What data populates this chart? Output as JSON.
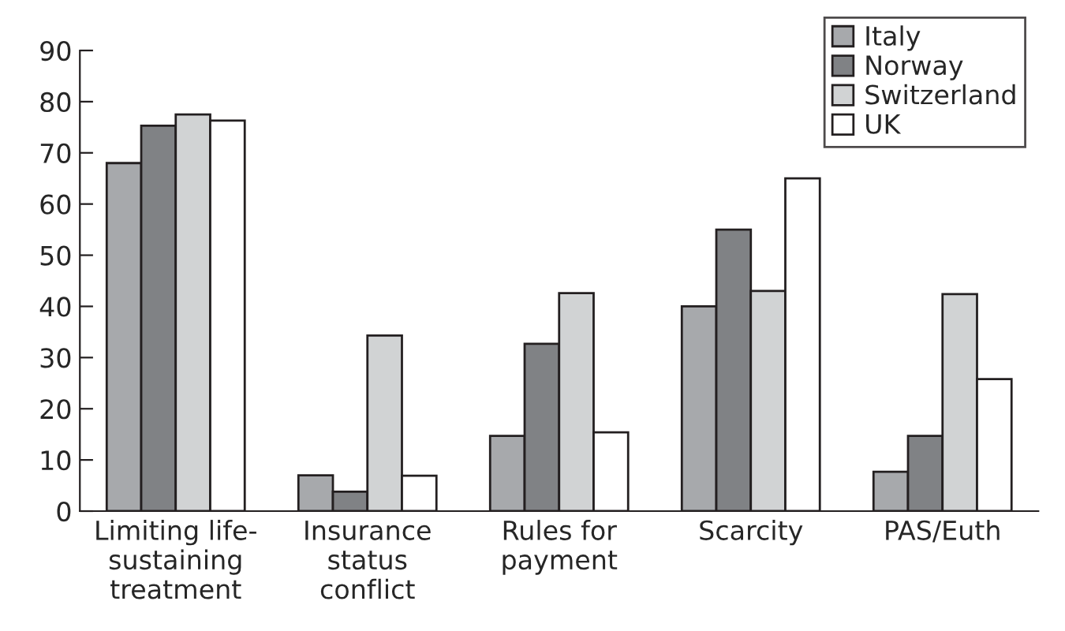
{
  "chart_data": {
    "type": "bar",
    "categories": [
      "Limiting life-\nsustaining\ntreatment",
      "Insurance\nstatus\nconflict",
      "Rules for\npayment",
      "Scarcity",
      "PAS/Euth"
    ],
    "series": [
      {
        "name": "Italy",
        "color": "#a7a9ac",
        "values": [
          68,
          7,
          14.7,
          40,
          7.7
        ]
      },
      {
        "name": "Norway",
        "color": "#808285",
        "values": [
          75.3,
          3.8,
          32.7,
          55,
          14.7
        ]
      },
      {
        "name": "Switzerland",
        "color": "#d1d3d4",
        "values": [
          77.5,
          34.3,
          42.6,
          43,
          42.4
        ]
      },
      {
        "name": "UK",
        "color": "#ffffff",
        "values": [
          76.3,
          6.9,
          15.4,
          65,
          25.8
        ]
      }
    ],
    "ylim": [
      0,
      90
    ],
    "yticks": [
      0,
      10,
      20,
      30,
      40,
      50,
      60,
      70,
      80,
      90
    ],
    "grid": false,
    "legend": "top right"
  }
}
